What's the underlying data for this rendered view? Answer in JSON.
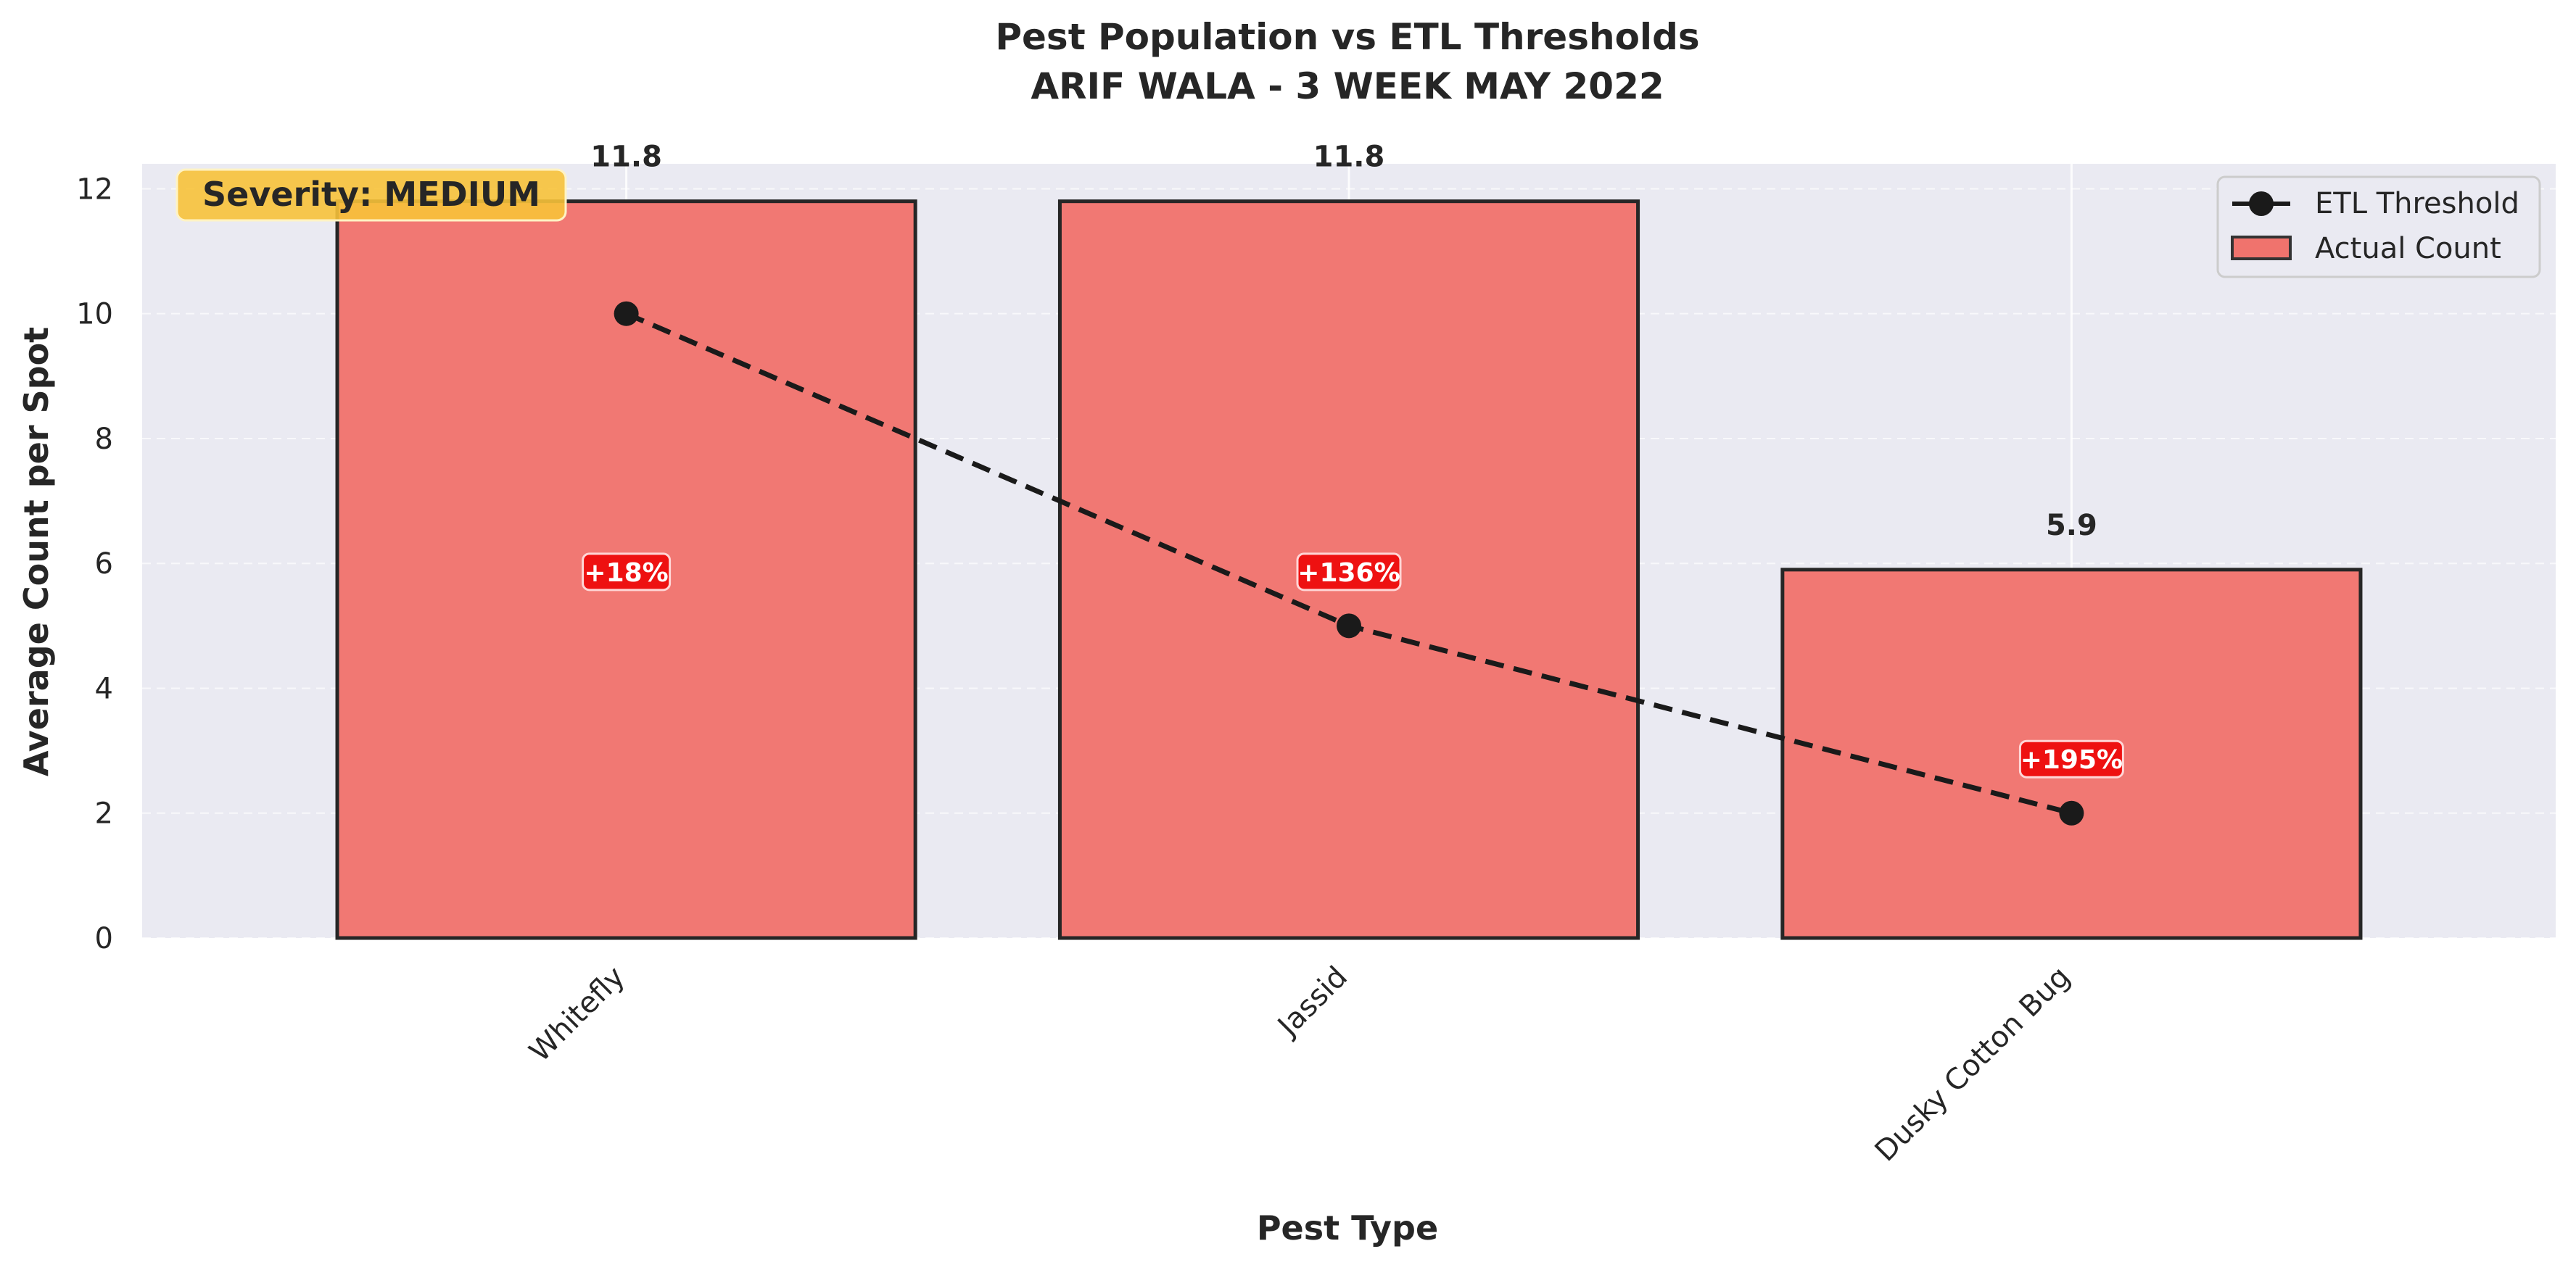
{
  "chart_data": {
    "type": "bar",
    "title": "Pest Population vs ETL Thresholds",
    "subtitle": "ARIF WALA - 3 WEEK MAY 2022",
    "xlabel": "Pest Type",
    "ylabel": "Average Count per Spot",
    "categories": [
      "Whitefly",
      "Jassid",
      "Dusky Cotton Bug"
    ],
    "series": [
      {
        "name": "Actual Count",
        "type": "bar",
        "values": [
          11.8,
          11.8,
          5.9
        ],
        "color": "#f0736d"
      },
      {
        "name": "ETL Threshold",
        "type": "line",
        "values": [
          10,
          5,
          2
        ],
        "color": "#1a1a1a"
      }
    ],
    "value_labels": [
      "11.8",
      "11.8",
      "5.9"
    ],
    "exceed_labels": [
      "+18%",
      "+136%",
      "+195%"
    ],
    "exceed_color": "#ee1111",
    "severity_label": "Severity: MEDIUM",
    "severity_color": "#f7c23a",
    "ylim": [
      0,
      12.4
    ],
    "yticks": [
      "0",
      "2",
      "4",
      "6",
      "8",
      "10",
      "12"
    ],
    "grid": true,
    "legend_position": "top-right",
    "legend": [
      "ETL Threshold",
      "Actual Count"
    ],
    "background_color": "#eaeaf2"
  }
}
